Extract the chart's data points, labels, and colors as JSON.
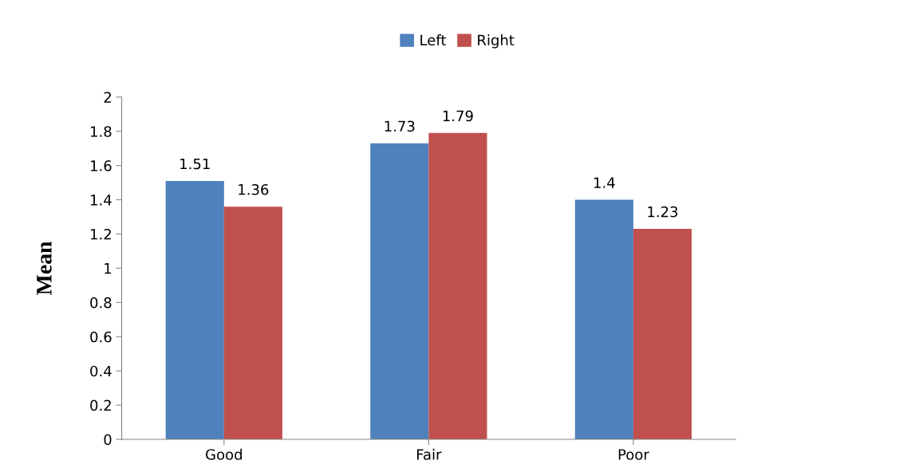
{
  "chart_data": {
    "type": "bar",
    "ylabel": "Mean",
    "categories": [
      "Good",
      "Fair",
      "Poor"
    ],
    "series": [
      {
        "name": "Left",
        "color": "#4f81bd",
        "values": [
          1.51,
          1.73,
          1.4
        ]
      },
      {
        "name": "Right",
        "color": "#c0504d",
        "values": [
          1.36,
          1.79,
          1.23
        ]
      }
    ],
    "ylim": [
      0,
      2
    ],
    "yticks": [
      0,
      {
        "value": 0.2,
        "label": "0.2"
      },
      {
        "value": 0.4,
        "label": "0.4"
      },
      {
        "value": 0.6,
        "label": "0.6"
      },
      {
        "value": 0.8,
        "label": "0.8"
      },
      1,
      {
        "value": 1.2,
        "label": "1.2"
      },
      {
        "value": 1.4,
        "label": "1.4"
      },
      {
        "value": 1.6,
        "label": "1.6"
      },
      {
        "value": 1.8,
        "label": "1.8"
      },
      2
    ],
    "grid": false,
    "legend": "top",
    "data_labels": true
  }
}
